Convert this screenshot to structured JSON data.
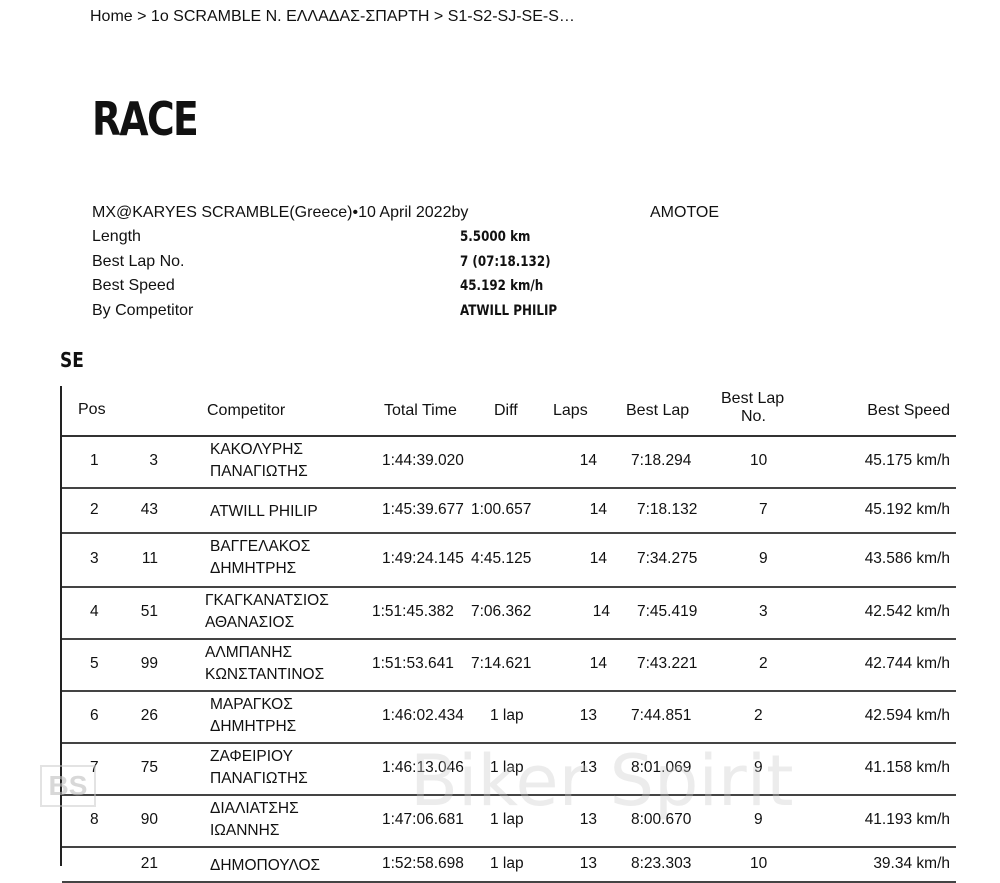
{
  "breadcrumb": "Home > 1o SCRAMBLE Ν. ΕΛΛΑΔΑΣ-ΣΠΑΡΤΗ > S1-S2-SJ-SE-S…",
  "title": "RACE",
  "event": {
    "line": "MX@KARYES SCRAMBLE(Greece)•10 April 2022by",
    "organizer": "AMOTOE"
  },
  "info": [
    {
      "label": "Length",
      "value": "5.5000 km"
    },
    {
      "label": "Best Lap No.",
      "value": "7 (07:18.132)"
    },
    {
      "label": "Best Speed",
      "value": "45.192 km/h"
    },
    {
      "label": "By Competitor",
      "value": "ATWILL PHILIP"
    }
  ],
  "class_name": "SE",
  "headers": {
    "pos": "Pos",
    "competitor": "Competitor",
    "total": "Total Time",
    "diff": "Diff",
    "laps": "Laps",
    "best_lap": "Best Lap",
    "best_lap_no_1": "Best Lap",
    "best_lap_no_2": "No.",
    "best_speed": "Best Speed"
  },
  "rows": [
    {
      "pos": "1",
      "num": "3",
      "name1": "ΚΑΚΟΛΥΡΗΣ",
      "name2": "ΠΑΝΑΓΙΩΤΗΣ",
      "total": "1:44:39.020",
      "diff": "",
      "laps": "14",
      "best": "7:18.294",
      "bestno": "10",
      "speed": "45.175 km/h"
    },
    {
      "pos": "2",
      "num": "43",
      "name1": "ATWILL PHILIP",
      "name2": "",
      "total": "1:45:39.677",
      "diff": "1:00.657",
      "laps": "14",
      "best": "7:18.132",
      "bestno": "7",
      "speed": "45.192 km/h"
    },
    {
      "pos": "3",
      "num": "11",
      "name1": "ΒΑΓΓΕΛΑΚΟΣ",
      "name2": "ΔΗΜΗΤΡΗΣ",
      "total": "1:49:24.145",
      "diff": "4:45.125",
      "laps": "14",
      "best": "7:34.275",
      "bestno": "9",
      "speed": "43.586 km/h"
    },
    {
      "pos": "4",
      "num": "51",
      "name1": "ΓΚΑΓΚΑΝΑΤΣΙΟΣ",
      "name2": "ΑΘΑΝΑΣΙΟΣ",
      "total": "1:51:45.382",
      "diff": "7:06.362",
      "laps": "14",
      "best": "7:45.419",
      "bestno": "3",
      "speed": "42.542 km/h"
    },
    {
      "pos": "5",
      "num": "99",
      "name1": "ΑΛΜΠΑΝΗΣ",
      "name2": "ΚΩΝΣΤΑΝΤΙΝΟΣ",
      "total": "1:51:53.641",
      "diff": "7:14.621",
      "laps": "14",
      "best": "7:43.221",
      "bestno": "2",
      "speed": "42.744 km/h"
    },
    {
      "pos": "6",
      "num": "26",
      "name1": "ΜΑΡΑΓΚΟΣ",
      "name2": "ΔΗΜΗΤΡΗΣ",
      "total": "1:46:02.434",
      "diff": "1 lap",
      "laps": "13",
      "best": "7:44.851",
      "bestno": "2",
      "speed": "42.594 km/h"
    },
    {
      "pos": "7",
      "num": "75",
      "name1": "ΖΑΦΕΙΡΙΟΥ",
      "name2": "ΠΑΝΑΓΙΩΤΗΣ",
      "total": "1:46:13.046",
      "diff": "1 lap",
      "laps": "13",
      "best": "8:01.069",
      "bestno": "9",
      "speed": "41.158 km/h"
    },
    {
      "pos": "8",
      "num": "90",
      "name1": "ΔΙΑΛΙΑΤΣΗΣ",
      "name2": "ΙΩΑΝΝΗΣ",
      "total": "1:47:06.681",
      "diff": "1 lap",
      "laps": "13",
      "best": "8:00.670",
      "bestno": "9",
      "speed": "41.193 km/h"
    },
    {
      "pos": "",
      "num": "21",
      "name1": "ΔΗΜΟΠΟΥΛΟΣ",
      "name2": "",
      "total": "1:52:58.698",
      "diff": "1 lap",
      "laps": "13",
      "best": "8:23.303",
      "bestno": "10",
      "speed": "39.34 km/h"
    }
  ],
  "watermark": {
    "text": "Biker Spirit",
    "logo": "BS"
  }
}
